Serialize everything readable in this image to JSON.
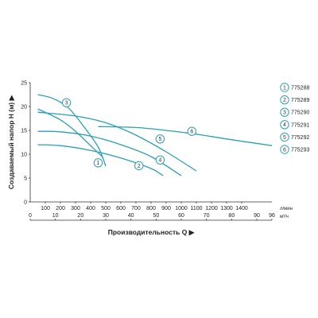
{
  "chart_data": {
    "type": "line",
    "xlabel": "Производительность Q",
    "ylabel": "Создаваемый напор H (м)",
    "x_unit_primary": "л/мин",
    "x_unit_secondary": "м³/ч",
    "xlim": [
      0,
      1600
    ],
    "ylim": [
      0,
      25
    ],
    "x_ticks": [
      100,
      200,
      300,
      400,
      500,
      600,
      700,
      800,
      900,
      1000,
      1100,
      1200,
      1300,
      1400
    ],
    "x2lim": [
      0,
      96
    ],
    "x2_ticks": [
      0,
      10,
      20,
      30,
      40,
      50,
      60,
      70,
      80,
      90,
      96
    ],
    "y_ticks": [
      0,
      5,
      10,
      15,
      20,
      25
    ],
    "grid": false,
    "legend_position": "right",
    "curve_color": "#2a9fb5",
    "series": [
      {
        "marker": "1",
        "name": "775288",
        "x": [
          50,
          200,
          300,
          400,
          480
        ],
        "y": [
          19.5,
          17.2,
          14.8,
          11.8,
          9.4
        ],
        "label_at": [
          450,
          8.2
        ]
      },
      {
        "marker": "2",
        "name": "775289",
        "x": [
          50,
          200,
          400,
          600,
          800,
          880
        ],
        "y": [
          12.0,
          11.8,
          10.8,
          9.2,
          7.0,
          5.5
        ],
        "label_at": [
          720,
          7.6
        ]
      },
      {
        "marker": "3",
        "name": "775290",
        "x": [
          50,
          150,
          250,
          350,
          450,
          500
        ],
        "y": [
          22.5,
          21.7,
          19.8,
          16.0,
          11.5,
          7.5
        ],
        "label_at": [
          240,
          20.8
        ]
      },
      {
        "marker": "4",
        "name": "775291",
        "x": [
          50,
          200,
          400,
          600,
          800,
          1000
        ],
        "y": [
          14.8,
          14.7,
          13.8,
          12.0,
          9.5,
          5.5
        ],
        "label_at": [
          860,
          8.8
        ]
      },
      {
        "marker": "5",
        "name": "775292",
        "x": [
          50,
          300,
          500,
          700,
          900,
          1100
        ],
        "y": [
          18.8,
          18.0,
          16.6,
          14.0,
          10.5,
          6.5
        ],
        "label_at": [
          860,
          13.2
        ]
      },
      {
        "marker": "6",
        "name": "775293",
        "x": [
          450,
          700,
          900,
          1100,
          1300,
          1600
        ],
        "y": [
          15.8,
          15.6,
          15.0,
          14.2,
          13.2,
          11.8
        ],
        "label_at": [
          1070,
          14.8
        ]
      }
    ]
  }
}
